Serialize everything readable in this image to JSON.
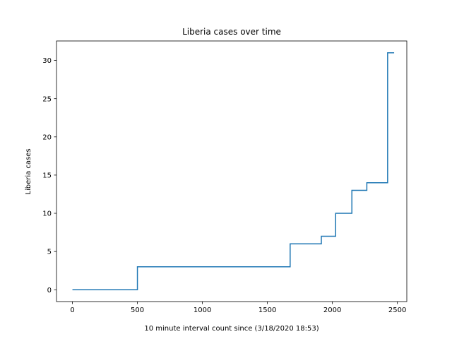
{
  "chart_data": {
    "type": "line",
    "step": true,
    "title": "Liberia cases over time",
    "xlabel": "10 minute interval count since (3/18/2020 18:53)",
    "ylabel": "Liberia cases",
    "xlim": [
      -122.5,
      2572.5
    ],
    "ylim": [
      -1.55,
      32.55
    ],
    "xticks": [
      0,
      500,
      1000,
      1500,
      2000,
      2500
    ],
    "yticks": [
      0,
      5,
      10,
      15,
      20,
      25,
      30
    ],
    "grid": false,
    "legend": "none",
    "line_color": "#1f77b4",
    "series": [
      {
        "x": [
          0,
          500,
          500,
          1675,
          1675,
          1915,
          1915,
          2025,
          2025,
          2150,
          2150,
          2265,
          2265,
          2425,
          2425,
          2475
        ],
        "y": [
          0,
          0,
          3,
          3,
          6,
          6,
          7,
          7,
          10,
          10,
          13,
          13,
          14,
          14,
          31,
          31
        ]
      }
    ]
  }
}
